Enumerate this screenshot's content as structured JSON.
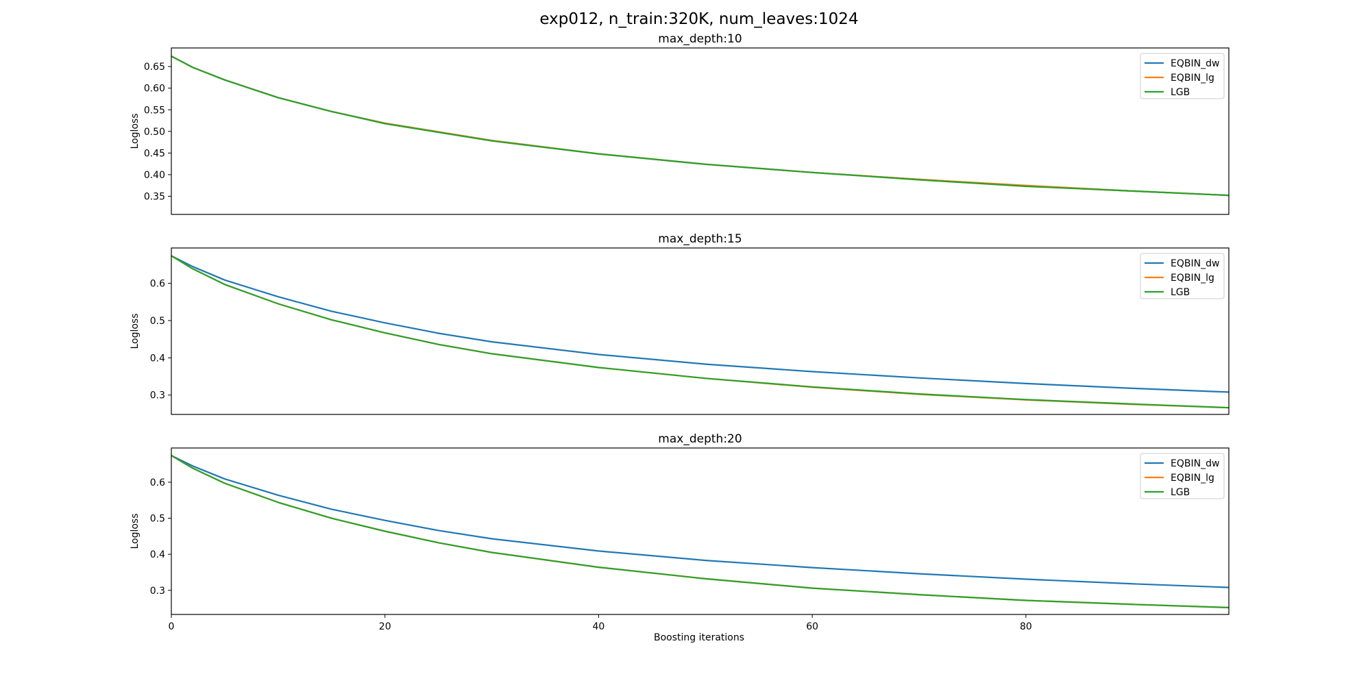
{
  "figure": {
    "suptitle": "exp012, n_train:320K, num_leaves:1024",
    "xlabel": "Boosting iterations"
  },
  "colors": {
    "EQBIN_dw": "#1f77b4",
    "EQBIN_lg": "#ff7f0e",
    "LGB": "#2ca02c"
  },
  "chart_data": [
    {
      "type": "line",
      "title": "max_depth:10",
      "xlabel": "",
      "ylabel": "Logloss",
      "xlim": [
        0,
        99
      ],
      "ylim": [
        0.308,
        0.693
      ],
      "yticks": [
        0.35,
        0.4,
        0.45,
        0.5,
        0.55,
        0.6,
        0.65
      ],
      "ytick_labels": [
        "0.35",
        "0.40",
        "0.45",
        "0.50",
        "0.55",
        "0.60",
        "0.65"
      ],
      "xticks": [
        0,
        20,
        40,
        60,
        80
      ],
      "xtick_labels": [
        "0",
        "20",
        "40",
        "60",
        "80"
      ],
      "show_xticks": false,
      "grid": false,
      "legend": "top-right",
      "series": [
        {
          "name": "EQBIN_dw",
          "x": [
            0,
            2,
            5,
            10,
            15,
            20,
            30,
            40,
            50,
            60,
            70,
            80,
            90,
            99
          ],
          "y": [
            0.674,
            0.648,
            0.619,
            0.578,
            0.546,
            0.519,
            0.479,
            0.448,
            0.424,
            0.405,
            0.389,
            0.374,
            0.362,
            0.352
          ]
        },
        {
          "name": "EQBIN_lg",
          "x": [
            0,
            2,
            5,
            10,
            15,
            20,
            30,
            40,
            50,
            60,
            70,
            80,
            90,
            99
          ],
          "y": [
            0.674,
            0.648,
            0.619,
            0.578,
            0.546,
            0.519,
            0.479,
            0.448,
            0.424,
            0.405,
            0.389,
            0.375,
            0.362,
            0.352
          ]
        },
        {
          "name": "LGB",
          "x": [
            0,
            2,
            5,
            10,
            15,
            20,
            30,
            40,
            50,
            60,
            70,
            80,
            90,
            99
          ],
          "y": [
            0.674,
            0.648,
            0.619,
            0.578,
            0.546,
            0.518,
            0.478,
            0.448,
            0.424,
            0.405,
            0.388,
            0.373,
            0.362,
            0.352
          ]
        }
      ]
    },
    {
      "type": "line",
      "title": "max_depth:15",
      "xlabel": "",
      "ylabel": "Logloss",
      "xlim": [
        0,
        99
      ],
      "ylim": [
        0.248,
        0.695
      ],
      "yticks": [
        0.3,
        0.4,
        0.5,
        0.6
      ],
      "ytick_labels": [
        "0.3",
        "0.4",
        "0.5",
        "0.6"
      ],
      "xticks": [
        0,
        20,
        40,
        60,
        80
      ],
      "xtick_labels": [
        "0",
        "20",
        "40",
        "60",
        "80"
      ],
      "show_xticks": false,
      "grid": false,
      "legend": "top-right",
      "series": [
        {
          "name": "EQBIN_dw",
          "x": [
            0,
            2,
            5,
            10,
            15,
            20,
            25,
            30,
            40,
            50,
            60,
            70,
            80,
            90,
            99
          ],
          "y": [
            0.674,
            0.645,
            0.609,
            0.564,
            0.525,
            0.494,
            0.466,
            0.443,
            0.409,
            0.383,
            0.363,
            0.346,
            0.331,
            0.318,
            0.308
          ]
        },
        {
          "name": "EQBIN_lg",
          "x": [
            0,
            2,
            5,
            10,
            15,
            20,
            25,
            30,
            40,
            50,
            60,
            70,
            80,
            90,
            99
          ],
          "y": [
            0.674,
            0.639,
            0.597,
            0.545,
            0.502,
            0.467,
            0.436,
            0.411,
            0.374,
            0.345,
            0.321,
            0.302,
            0.287,
            0.275,
            0.266
          ]
        },
        {
          "name": "LGB",
          "x": [
            0,
            2,
            5,
            10,
            15,
            20,
            25,
            30,
            40,
            50,
            60,
            70,
            80,
            90,
            99
          ],
          "y": [
            0.674,
            0.639,
            0.597,
            0.545,
            0.502,
            0.467,
            0.436,
            0.411,
            0.374,
            0.345,
            0.322,
            0.303,
            0.288,
            0.276,
            0.266
          ]
        }
      ]
    },
    {
      "type": "line",
      "title": "max_depth:20",
      "xlabel": "Boosting iterations",
      "ylabel": "Logloss",
      "xlim": [
        0,
        99
      ],
      "ylim": [
        0.233,
        0.695
      ],
      "yticks": [
        0.3,
        0.4,
        0.5,
        0.6
      ],
      "ytick_labels": [
        "0.3",
        "0.4",
        "0.5",
        "0.6"
      ],
      "xticks": [
        0,
        20,
        40,
        60,
        80
      ],
      "xtick_labels": [
        "0",
        "20",
        "40",
        "60",
        "80"
      ],
      "show_xticks": true,
      "grid": false,
      "legend": "top-right",
      "series": [
        {
          "name": "EQBIN_dw",
          "x": [
            0,
            2,
            5,
            10,
            15,
            20,
            25,
            30,
            40,
            50,
            60,
            70,
            80,
            90,
            99
          ],
          "y": [
            0.674,
            0.645,
            0.609,
            0.564,
            0.525,
            0.494,
            0.466,
            0.443,
            0.409,
            0.383,
            0.363,
            0.346,
            0.331,
            0.318,
            0.308
          ]
        },
        {
          "name": "EQBIN_lg",
          "x": [
            0,
            2,
            5,
            10,
            15,
            20,
            25,
            30,
            40,
            50,
            60,
            70,
            80,
            90,
            99
          ],
          "y": [
            0.674,
            0.639,
            0.597,
            0.544,
            0.5,
            0.464,
            0.432,
            0.405,
            0.364,
            0.332,
            0.306,
            0.288,
            0.272,
            0.261,
            0.252
          ]
        },
        {
          "name": "LGB",
          "x": [
            0,
            2,
            5,
            10,
            15,
            20,
            25,
            30,
            40,
            50,
            60,
            70,
            80,
            90,
            99
          ],
          "y": [
            0.674,
            0.639,
            0.597,
            0.544,
            0.5,
            0.464,
            0.432,
            0.405,
            0.364,
            0.332,
            0.306,
            0.288,
            0.272,
            0.261,
            0.252
          ]
        }
      ]
    }
  ]
}
